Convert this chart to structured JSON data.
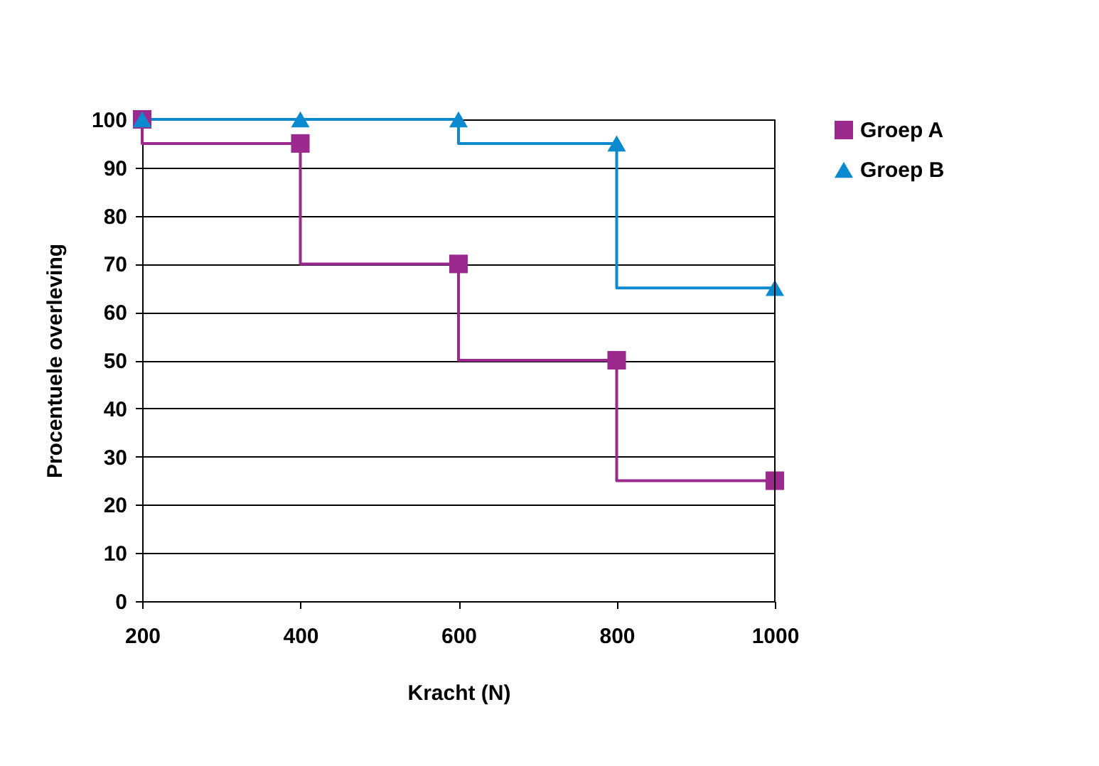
{
  "chart_data": {
    "type": "step",
    "xlabel": "Kracht (N)",
    "ylabel": "Procentuele overleving",
    "x": [
      200,
      400,
      600,
      800,
      1000
    ],
    "series": [
      {
        "name": "Groep A",
        "color": "#9c2a8e",
        "marker": "square",
        "values": [
          100,
          95,
          70,
          50,
          25
        ]
      },
      {
        "name": "Groep B",
        "color": "#0b8ad0",
        "marker": "triangle",
        "values": [
          100,
          100,
          100,
          95,
          65
        ]
      }
    ],
    "xlim": [
      200,
      1000
    ],
    "xticks": [
      200,
      400,
      600,
      800,
      1000
    ],
    "ylim": [
      0,
      100
    ],
    "yticks": [
      0,
      10,
      20,
      30,
      40,
      50,
      60,
      70,
      80,
      90,
      100
    ],
    "grid": "y",
    "legend": "right",
    "line_style": "solid"
  }
}
